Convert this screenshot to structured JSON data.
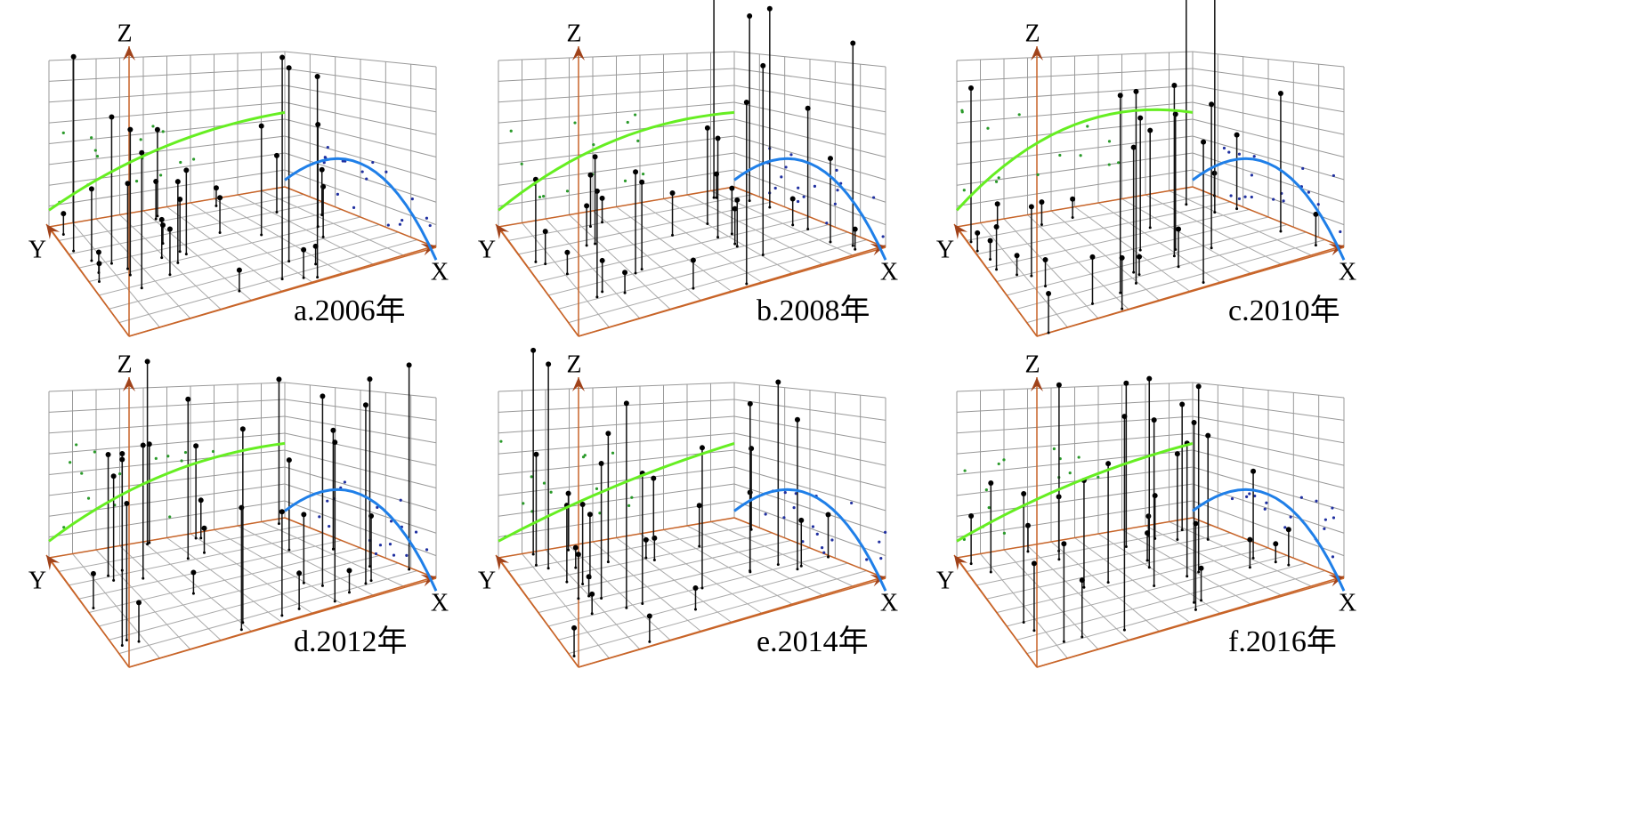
{
  "panels": [
    {
      "label": "a.2006年",
      "axes": {
        "x": "X",
        "y": "Y",
        "z": "Z"
      }
    },
    {
      "label": "b.2008年",
      "axes": {
        "x": "X",
        "y": "Y",
        "z": "Z"
      }
    },
    {
      "label": "c.2010年",
      "axes": {
        "x": "X",
        "y": "Y",
        "z": "Z"
      }
    },
    {
      "label": "d.2012年",
      "axes": {
        "x": "X",
        "y": "Y",
        "z": "Z"
      }
    },
    {
      "label": "e.2014年",
      "axes": {
        "x": "X",
        "y": "Y",
        "z": "Z"
      }
    },
    {
      "label": "f.2016年",
      "axes": {
        "x": "X",
        "y": "Y",
        "z": "Z"
      }
    }
  ]
}
